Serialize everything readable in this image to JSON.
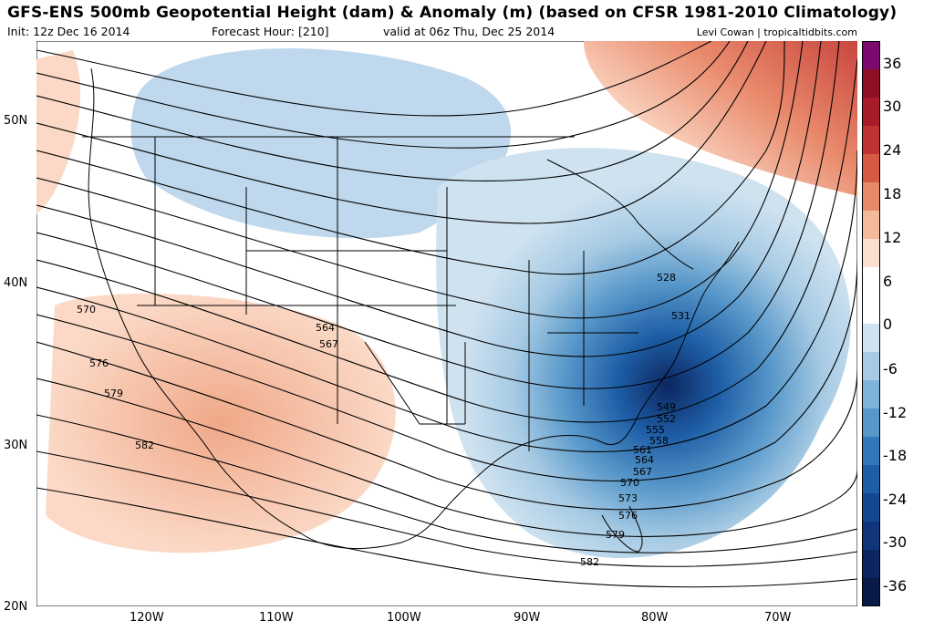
{
  "header": {
    "title": "GFS-ENS 500mb Geopotential Height (dam) & Anomaly (m) (based on CFSR 1981-2010 Climatology)",
    "init": "Init: 12z Dec 16 2014",
    "forecast_hour": "Forecast Hour: [210]",
    "valid": "valid at 06z Thu, Dec 25 2014",
    "credit": "Levi Cowan | tropicaltidbits.com"
  },
  "colorbar": {
    "labels": [
      "36",
      "30",
      "24",
      "18",
      "12",
      "6",
      "0",
      "-6",
      "-12",
      "-18",
      "-24",
      "-30",
      "-36"
    ],
    "colors": [
      "#7a0a6e",
      "#8e1026",
      "#a81c2a",
      "#bf3432",
      "#d55a45",
      "#e78a6b",
      "#f2b99a",
      "#fbe0cf",
      "#ffffff",
      "#ffffff",
      "#cfe2f0",
      "#a7cbe4",
      "#7fb3d8",
      "#5797c9",
      "#3378b8",
      "#1e5ea6",
      "#154890",
      "#10357a",
      "#0c2660",
      "#081a45"
    ]
  },
  "axes": {
    "lat_labels": [
      "50N",
      "40N",
      "30N",
      "20N"
    ],
    "lon_labels": [
      "120W",
      "110W",
      "100W",
      "90W",
      "80W",
      "70W"
    ]
  },
  "contours": {
    "labels": [
      "570",
      "576",
      "579",
      "582",
      "564",
      "567",
      "528",
      "531",
      "549",
      "552",
      "555",
      "558",
      "561",
      "564",
      "567",
      "570",
      "573",
      "576",
      "579",
      "582"
    ]
  }
}
